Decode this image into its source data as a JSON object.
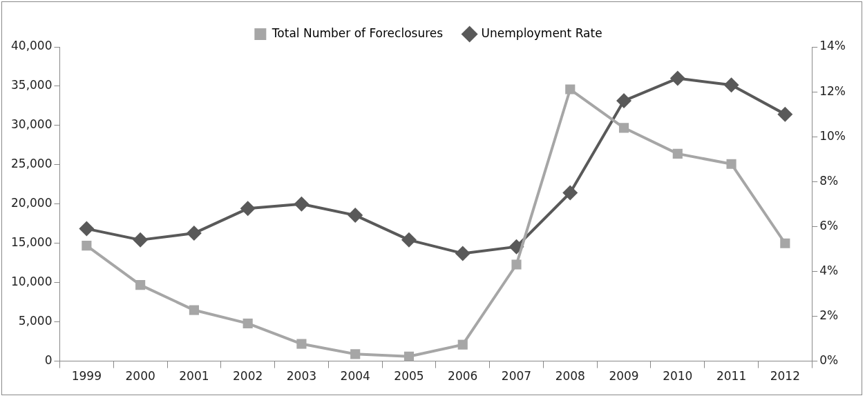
{
  "chart_data": {
    "type": "line",
    "categories": [
      "1999",
      "2000",
      "2001",
      "2002",
      "2003",
      "2004",
      "2005",
      "2006",
      "2007",
      "2008",
      "2009",
      "2010",
      "2011",
      "2012"
    ],
    "series": [
      {
        "name": "Total Number of Foreclosures",
        "color": "#a6a6a6",
        "marker": "square",
        "values": [
          14700,
          9700,
          6500,
          4800,
          2200,
          900,
          600,
          2100,
          12300,
          34600,
          29700,
          26400,
          25100,
          15000
        ]
      },
      {
        "name": "Unemployment Rate",
        "color": "#595959",
        "marker": "diamond",
        "axis": "y2",
        "values": [
          5.9,
          5.4,
          5.7,
          6.8,
          7.0,
          6.5,
          5.4,
          4.8,
          5.1,
          7.5,
          11.6,
          12.6,
          12.3,
          11.0
        ]
      }
    ],
    "ylim": [
      0,
      40000
    ],
    "yticks": [
      {
        "value": 0,
        "label": "0"
      },
      {
        "value": 5000,
        "label": "5,000"
      },
      {
        "value": 10000,
        "label": "10,000"
      },
      {
        "value": 15000,
        "label": "15,000"
      },
      {
        "value": 20000,
        "label": "20,000"
      },
      {
        "value": 25000,
        "label": "25,000"
      },
      {
        "value": 30000,
        "label": "30,000"
      },
      {
        "value": 35000,
        "label": "35,000"
      },
      {
        "value": 40000,
        "label": "40,000"
      }
    ],
    "y2lim": [
      0,
      14
    ],
    "y2ticks": [
      {
        "value": 0,
        "label": "0%"
      },
      {
        "value": 2,
        "label": "2%"
      },
      {
        "value": 4,
        "label": "4%"
      },
      {
        "value": 6,
        "label": "6%"
      },
      {
        "value": 8,
        "label": "8%"
      },
      {
        "value": 10,
        "label": "10%"
      },
      {
        "value": 12,
        "label": "12%"
      },
      {
        "value": 14,
        "label": "14%"
      }
    ],
    "grid": false,
    "legend": "top"
  }
}
